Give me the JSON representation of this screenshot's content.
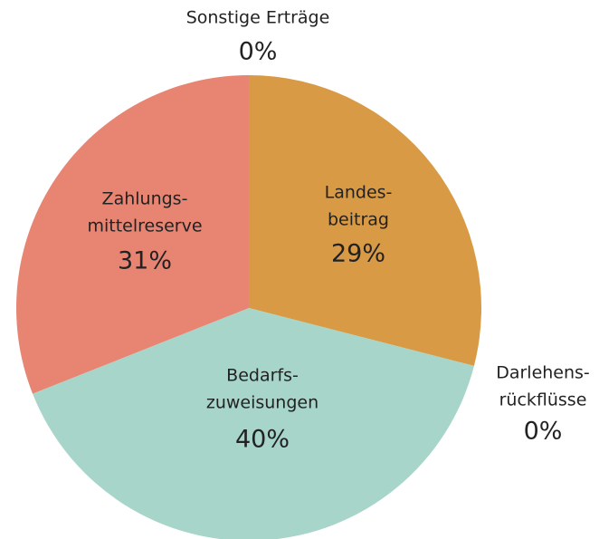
{
  "chart_data": {
    "type": "pie",
    "categories": [
      [
        "Landes-",
        "beitrag"
      ],
      [
        "Darlehens-",
        "rückflüsse"
      ],
      [
        "Bedarfs-",
        "zuweisungen"
      ],
      [
        "Zahlungs-",
        "mittelreserve"
      ],
      [
        "Sonstige Erträge"
      ]
    ],
    "values": [
      29,
      0,
      40,
      31,
      0
    ],
    "value_labels": [
      "29%",
      "0%",
      "40%",
      "31%",
      "0%"
    ],
    "colors": [
      "#d89a45",
      "#9e9e9e",
      "#a8d5ca",
      "#e88472",
      "#9e9e9e"
    ]
  }
}
